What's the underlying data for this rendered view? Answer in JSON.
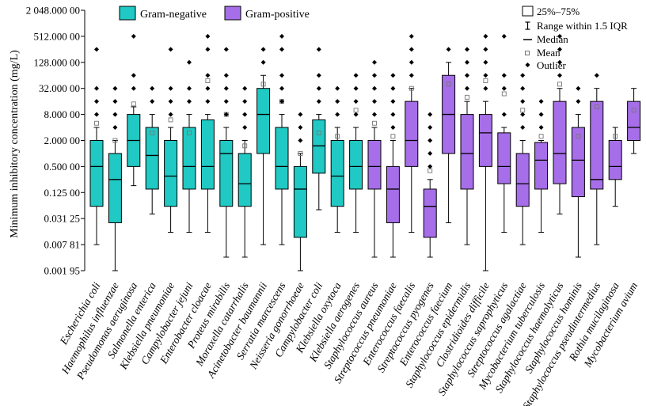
{
  "chart_data": {
    "type": "box",
    "ylabel": "Minimum inhibitory concentration (mg/L)",
    "y_scale": "log2",
    "ylim": [
      0.00195,
      2048
    ],
    "y_ticks": [
      0.00195,
      0.00781,
      0.03125,
      0.125,
      0.5,
      2,
      8,
      32,
      128,
      512,
      2048
    ],
    "y_tick_labels": [
      "0.001 95",
      "0.007 81",
      "0.031 25",
      "0.125 00",
      "0.500 00",
      "2.000 00",
      "8.000 00",
      "32.000 00",
      "128.000 00",
      "512.000 00",
      "2 048.000 00"
    ],
    "legend": [
      {
        "name": "Gram-negative",
        "color": "#20c9c3"
      },
      {
        "name": "Gram-positive",
        "color": "#a66ee8"
      }
    ],
    "key": {
      "box": "25%–75%",
      "whisker": "Range within 1.5 IQR",
      "median": "Median",
      "mean": "Mean",
      "outlier": "Outlier"
    },
    "series": [
      {
        "name": "Escherichia coli",
        "group": "Gram-negative",
        "whisker_low": 0.0078,
        "q1": 0.06,
        "median": 0.5,
        "q3": 2,
        "whisker_high": 4,
        "mean": 5,
        "outliers": [
          8,
          16,
          32,
          256
        ]
      },
      {
        "name": "Haemophilus influenzae",
        "group": "Gram-negative",
        "whisker_low": 0.00195,
        "q1": 0.025,
        "median": 0.25,
        "q3": 1,
        "whisker_high": 2,
        "mean": 2,
        "outliers": [
          4,
          8,
          16,
          32
        ]
      },
      {
        "name": "Pseudomonas aeruginosa",
        "group": "Gram-negative",
        "whisker_low": 0.18,
        "q1": 0.5,
        "median": 2,
        "q3": 8,
        "whisker_high": 12,
        "mean": 14,
        "outliers": [
          32,
          64,
          512
        ]
      },
      {
        "name": "Salmonella enterica",
        "group": "Gram-negative",
        "whisker_low": 0.04,
        "q1": 0.15,
        "median": 0.9,
        "q3": 4,
        "whisker_high": 8,
        "mean": 3,
        "outliers": [
          16,
          32
        ]
      },
      {
        "name": "Klebsiella pneumoniae",
        "group": "Gram-negative",
        "whisker_low": 0.015,
        "q1": 0.06,
        "median": 0.3,
        "q3": 2,
        "whisker_high": 4,
        "mean": 6,
        "outliers": [
          8,
          16,
          32,
          256
        ]
      },
      {
        "name": "Campylobacter jejuni",
        "group": "Gram-negative",
        "whisker_low": 0.015,
        "q1": 0.15,
        "median": 0.5,
        "q3": 4,
        "whisker_high": 8,
        "mean": 3,
        "outliers": [
          16,
          32,
          128
        ]
      },
      {
        "name": "Enterobacter cloacae",
        "group": "Gram-negative",
        "whisker_low": 0.015,
        "q1": 0.15,
        "median": 0.5,
        "q3": 6,
        "whisker_high": 8,
        "mean": 48,
        "outliers": [
          16,
          32,
          64,
          256,
          512
        ]
      },
      {
        "name": "Proteus mirabilis",
        "group": "Gram-negative",
        "whisker_low": 0.004,
        "q1": 0.06,
        "median": 1,
        "q3": 2,
        "whisker_high": 4,
        "mean": 8,
        "outliers": [
          8,
          16,
          32,
          64,
          256
        ]
      },
      {
        "name": "Moraxella catarrhalis",
        "group": "Gram-negative",
        "whisker_low": 0.004,
        "q1": 0.06,
        "median": 0.2,
        "q3": 1,
        "whisker_high": 2,
        "mean": 1.5,
        "outliers": [
          4,
          8,
          16,
          32
        ]
      },
      {
        "name": "Acinetobacter baumannii",
        "group": "Gram-negative",
        "whisker_low": 0.0078,
        "q1": 1,
        "median": 8,
        "q3": 32,
        "whisker_high": 64,
        "mean": 40,
        "outliers": [
          128,
          256
        ]
      },
      {
        "name": "Serratia marcescens",
        "group": "Gram-negative",
        "whisker_low": 0.0078,
        "q1": 0.15,
        "median": 0.5,
        "q3": 4,
        "whisker_high": 8,
        "mean": 16,
        "outliers": [
          16,
          32,
          64,
          256,
          512
        ]
      },
      {
        "name": "Neisseria gonorrhoeae",
        "group": "Gram-negative",
        "whisker_low": 0.00195,
        "q1": 0.0115,
        "median": 0.15,
        "q3": 0.5,
        "whisker_high": 1,
        "mean": 1,
        "outliers": [
          2,
          4,
          8
        ]
      },
      {
        "name": "Campylobacter coli",
        "group": "Gram-negative",
        "whisker_low": 0.05,
        "q1": 0.35,
        "median": 1.5,
        "q3": 6,
        "whisker_high": 8,
        "mean": 3,
        "outliers": [
          16,
          32,
          64,
          256
        ]
      },
      {
        "name": "Klebsiella oxytoca",
        "group": "Gram-negative",
        "whisker_low": 0.015,
        "q1": 0.06,
        "median": 0.3,
        "q3": 2,
        "whisker_high": 4,
        "mean": 2.5,
        "outliers": [
          8,
          16,
          32
        ]
      },
      {
        "name": "Klebsiella aerogenes",
        "group": "Gram-negative",
        "whisker_low": 0.015,
        "q1": 0.15,
        "median": 0.5,
        "q3": 2,
        "whisker_high": 4,
        "mean": 10,
        "outliers": [
          8,
          16,
          32,
          64
        ]
      },
      {
        "name": "Staphylococcus aureus",
        "group": "Gram-positive",
        "whisker_low": 0.004,
        "q1": 0.15,
        "median": 0.5,
        "q3": 2,
        "whisker_high": 4,
        "mean": 5,
        "outliers": [
          8,
          16,
          32,
          64,
          128
        ]
      },
      {
        "name": "Streptococcus pneumoniae",
        "group": "Gram-positive",
        "whisker_low": 0.004,
        "q1": 0.025,
        "median": 0.15,
        "q3": 0.5,
        "whisker_high": 2,
        "mean": 2.5,
        "outliers": [
          4,
          8,
          16,
          32,
          64
        ]
      },
      {
        "name": "Enterococcus faecalis",
        "group": "Gram-positive",
        "whisker_low": 0.015,
        "q1": 0.5,
        "median": 2,
        "q3": 16,
        "whisker_high": 32,
        "mean": 32,
        "outliers": [
          64,
          128,
          256,
          512
        ]
      },
      {
        "name": "Streptococcus pyogenes",
        "group": "Gram-positive",
        "whisker_low": 0.004,
        "q1": 0.0115,
        "median": 0.06,
        "q3": 0.15,
        "whisker_high": 0.25,
        "mean": 0.4,
        "outliers": [
          0.5,
          1,
          2,
          4,
          8
        ]
      },
      {
        "name": "Enterococcus faecium",
        "group": "Gram-positive",
        "whisker_low": 0.025,
        "q1": 1,
        "median": 8,
        "q3": 64,
        "whisker_high": 128,
        "mean": 40,
        "outliers": [
          256
        ]
      },
      {
        "name": "Staphylococcus epidermidis",
        "group": "Gram-positive",
        "whisker_low": 0.0078,
        "q1": 0.15,
        "median": 1,
        "q3": 8,
        "whisker_high": 16,
        "mean": 20,
        "outliers": [
          32,
          64,
          128,
          256
        ]
      },
      {
        "name": "Clostridioides difficile",
        "group": "Gram-positive",
        "whisker_low": 0.00195,
        "q1": 0.5,
        "median": 3,
        "q3": 8,
        "whisker_high": 16,
        "mean": 48,
        "outliers": [
          32,
          64,
          128,
          256,
          512
        ]
      },
      {
        "name": "Staphylococcus saprophyticus",
        "group": "Gram-positive",
        "whisker_low": 0.015,
        "q1": 0.2,
        "median": 0.5,
        "q3": 3,
        "whisker_high": 4,
        "mean": 24,
        "outliers": [
          8,
          32,
          64,
          512
        ]
      },
      {
        "name": "Streptococcus agalactiae",
        "group": "Gram-positive",
        "whisker_low": 0.0078,
        "q1": 0.06,
        "median": 0.2,
        "q3": 1,
        "whisker_high": 2,
        "mean": 10,
        "outliers": [
          4,
          8,
          16,
          32,
          64
        ]
      },
      {
        "name": "Mycobacterium tuberculosis",
        "group": "Gram-positive",
        "whisker_low": 0.015,
        "q1": 0.15,
        "median": 0.7,
        "q3": 1.8,
        "whisker_high": 2,
        "mean": 2.5,
        "outliers": [
          4,
          8,
          16
        ]
      },
      {
        "name": "Staphylococcus haemolyticus",
        "group": "Gram-positive",
        "whisker_low": 0.04,
        "q1": 0.2,
        "median": 1,
        "q3": 16,
        "whisker_high": 32,
        "mean": 40,
        "outliers": [
          64,
          128,
          256,
          512
        ]
      },
      {
        "name": "Staphylococcus hominis",
        "group": "Gram-positive",
        "whisker_low": 0.004,
        "q1": 0.1,
        "median": 0.7,
        "q3": 4,
        "whisker_high": 8,
        "mean": 2.5,
        "outliers": [
          16,
          32
        ]
      },
      {
        "name": "Staphylococcus pseudintermedius",
        "group": "Gram-positive",
        "whisker_low": 0.0078,
        "q1": 0.15,
        "median": 0.25,
        "q3": 16,
        "whisker_high": 32,
        "mean": 12,
        "outliers": [
          64
        ]
      },
      {
        "name": "Rothia mucilaginosa",
        "group": "Gram-positive",
        "whisker_low": 0.06,
        "q1": 0.25,
        "median": 0.5,
        "q3": 2,
        "whisker_high": 4,
        "mean": 2.5,
        "outliers": []
      },
      {
        "name": "Mycobacterium avium",
        "group": "Gram-positive",
        "whisker_low": 1,
        "q1": 2,
        "median": 4,
        "q3": 16,
        "whisker_high": 32,
        "mean": 10,
        "outliers": []
      }
    ]
  }
}
